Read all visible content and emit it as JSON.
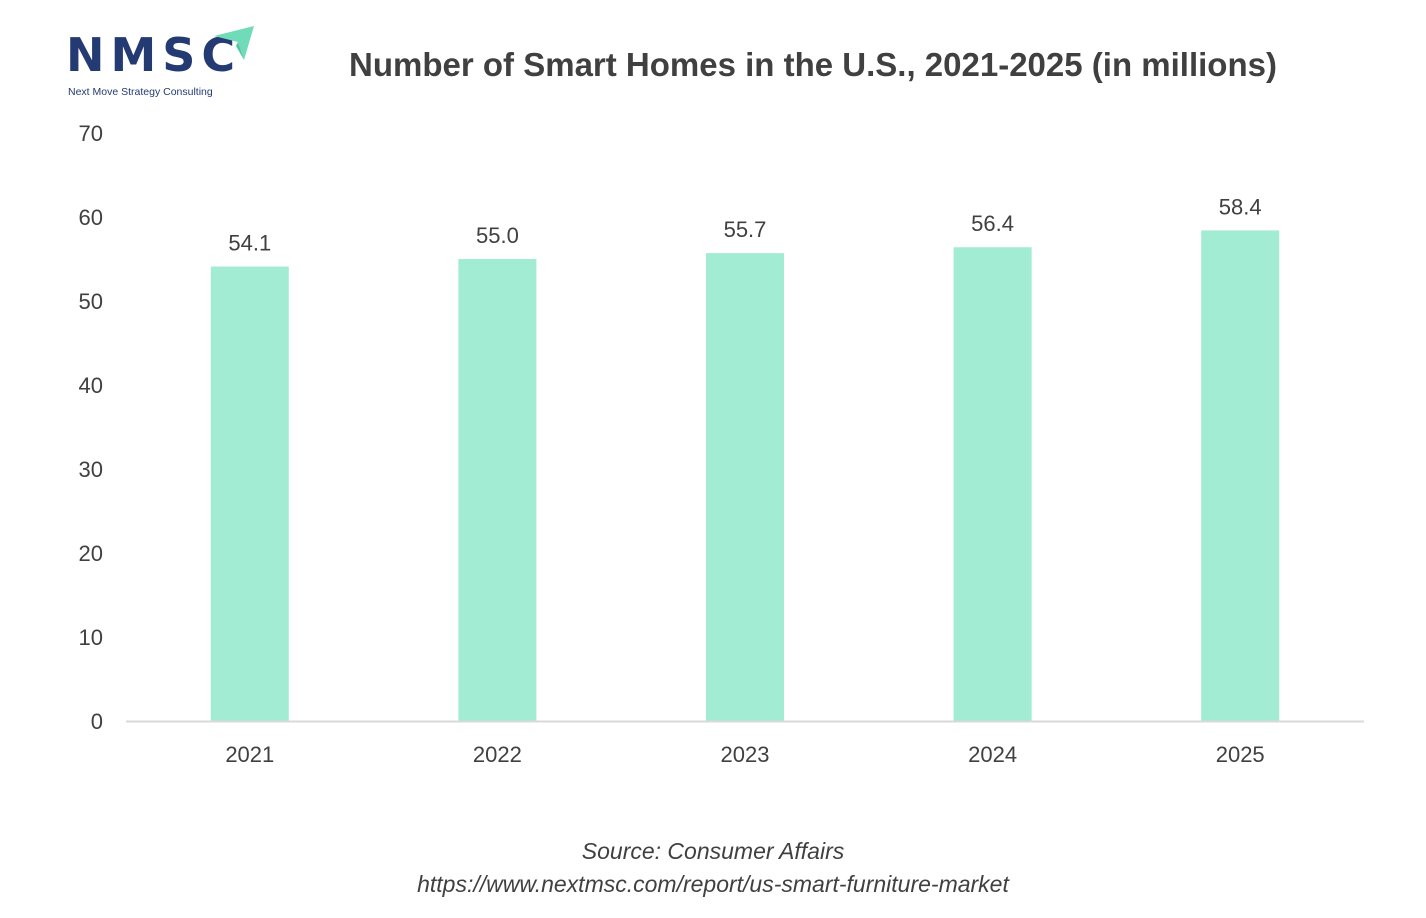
{
  "logo": {
    "text": "NMSC",
    "tagline": "Next Move Strategy Consulting",
    "colors": {
      "text": "#243a73",
      "arrow": "#6fdbb8"
    }
  },
  "chart_data": {
    "type": "bar",
    "title": "Number of Smart Homes in the U.S., 2021-2025 (in millions)",
    "categories": [
      "2021",
      "2022",
      "2023",
      "2024",
      "2025"
    ],
    "values": [
      54.1,
      55.0,
      55.7,
      56.4,
      58.4
    ],
    "value_labels": [
      "54.1",
      "55.0",
      "55.7",
      "56.4",
      "58.4"
    ],
    "ylim": [
      0,
      70
    ],
    "yticks": [
      0,
      10,
      20,
      30,
      40,
      50,
      60,
      70
    ],
    "xlabel": "",
    "ylabel": "",
    "grid": false,
    "legend": "none",
    "colors": {
      "bar": "#a1ecd2",
      "axis": "#d9d9d9",
      "text": "#404040"
    }
  },
  "footer": {
    "source": "Source: Consumer Affairs",
    "url": "https://www.nextmsc.com/report/us-smart-furniture-market"
  }
}
